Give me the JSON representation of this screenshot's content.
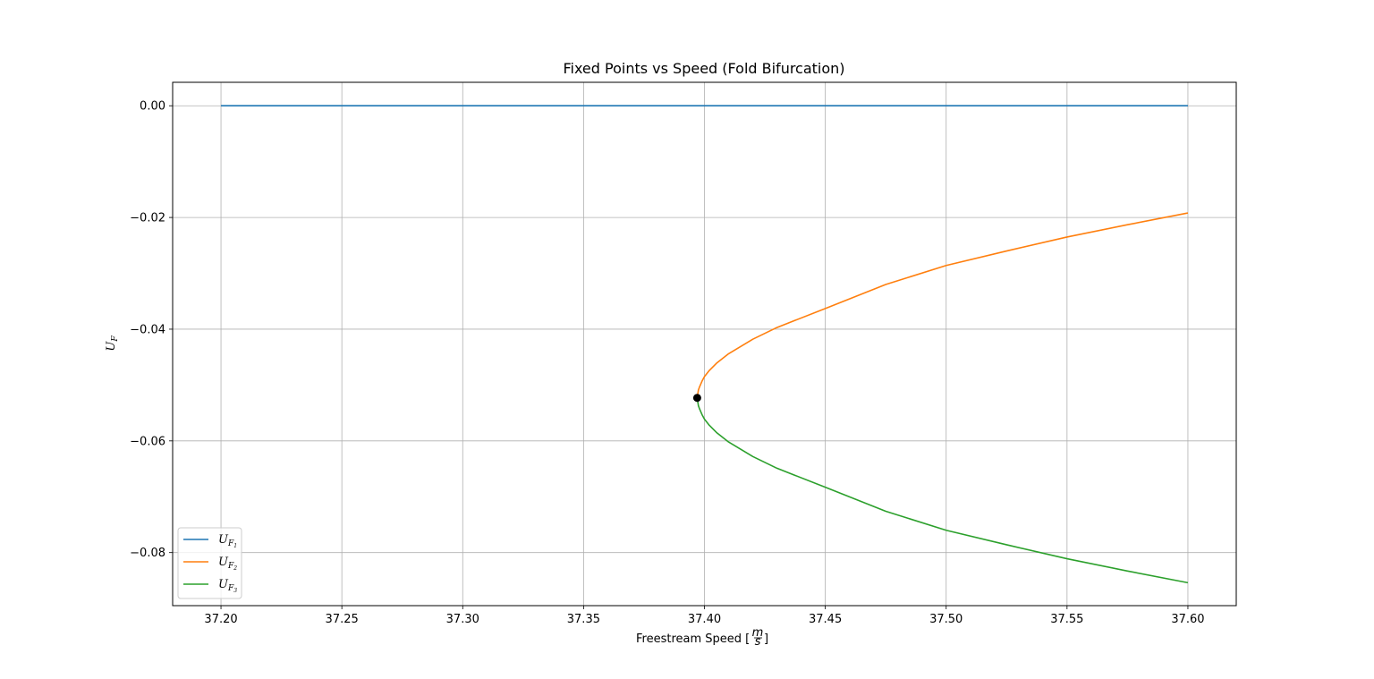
{
  "chart_data": {
    "type": "line",
    "title": "Fixed Points vs Speed (Fold Bifurcation)",
    "xlabel": "Freestream Speed [m/s]",
    "ylabel": "U_F",
    "xlim": [
      37.18,
      37.62
    ],
    "ylim": [
      -0.0895,
      0.0042
    ],
    "xticks": [
      37.2,
      37.25,
      37.3,
      37.35,
      37.4,
      37.45,
      37.5,
      37.55,
      37.6
    ],
    "xtick_labels": [
      "37.20",
      "37.25",
      "37.30",
      "37.35",
      "37.40",
      "37.45",
      "37.50",
      "37.55",
      "37.60"
    ],
    "yticks": [
      0.0,
      -0.02,
      -0.04,
      -0.06,
      -0.08
    ],
    "ytick_labels": [
      "0.00",
      "−0.02",
      "−0.04",
      "−0.06",
      "−0.08"
    ],
    "grid": true,
    "legend": "lower-left",
    "bifurcation_point": {
      "x": 37.397,
      "y": -0.0523,
      "color": "#000000"
    },
    "series": [
      {
        "name": "U_F1",
        "label_main": "U",
        "label_sub": "F",
        "label_subsub": "1",
        "color": "#1f77b4",
        "x": [
          37.2,
          37.6
        ],
        "y": [
          0.0,
          0.0
        ]
      },
      {
        "name": "U_F2",
        "label_main": "U",
        "label_sub": "F",
        "label_subsub": "2",
        "color": "#ff7f0e",
        "x": [
          37.397,
          37.3975,
          37.398,
          37.399,
          37.4,
          37.402,
          37.405,
          37.41,
          37.42,
          37.43,
          37.45,
          37.475,
          37.5,
          37.525,
          37.55,
          37.575,
          37.6
        ],
        "y": [
          -0.0523,
          -0.0509,
          -0.0503,
          -0.0493,
          -0.0485,
          -0.0474,
          -0.0461,
          -0.0444,
          -0.0418,
          -0.0397,
          -0.0363,
          -0.032,
          -0.0286,
          -0.026,
          -0.0235,
          -0.0213,
          -0.0192
        ]
      },
      {
        "name": "U_F3",
        "label_main": "U",
        "label_sub": "F",
        "label_subsub": "3",
        "color": "#2ca02c",
        "x": [
          37.397,
          37.3975,
          37.398,
          37.399,
          37.4,
          37.402,
          37.405,
          37.41,
          37.42,
          37.43,
          37.45,
          37.475,
          37.5,
          37.525,
          37.55,
          37.575,
          37.6
        ],
        "y": [
          -0.0523,
          -0.0537,
          -0.0543,
          -0.0553,
          -0.0561,
          -0.0572,
          -0.0585,
          -0.0602,
          -0.0628,
          -0.0649,
          -0.0683,
          -0.0726,
          -0.076,
          -0.0786,
          -0.0811,
          -0.0833,
          -0.0854
        ]
      }
    ]
  }
}
